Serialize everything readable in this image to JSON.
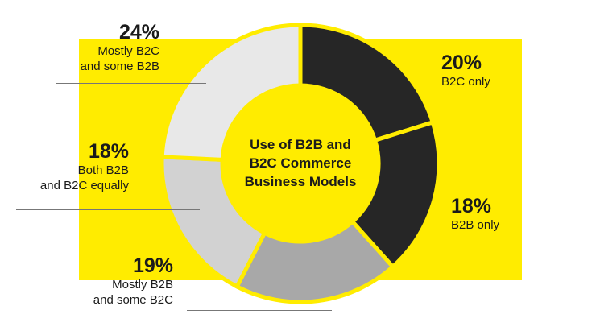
{
  "chart_data": {
    "type": "pie",
    "title": "Use of B2B and B2C Commerce Business Models",
    "categories": [
      "B2C only",
      "B2B only",
      "Mostly B2B and some B2C",
      "Both B2B and B2C equally",
      "Mostly B2C and some B2B"
    ],
    "values": [
      20,
      18,
      19,
      18,
      24
    ],
    "value_labels": [
      "20%",
      "18%",
      "19%",
      "18%",
      "24%"
    ],
    "slice_colors": [
      "#262626",
      "#262626",
      "#a8a8a8",
      "#d2d2d2",
      "#e8e8e8"
    ]
  },
  "labels": {
    "b2c_only": {
      "pct": "20%",
      "line1": "B2C only"
    },
    "b2b_only": {
      "pct": "18%",
      "line1": "B2B only"
    },
    "mostly_b2b": {
      "pct": "19%",
      "line1": "Mostly B2B",
      "line2": "and some B2C"
    },
    "both_equally": {
      "pct": "18%",
      "line1": "Both B2B",
      "line2": "and B2C equally"
    },
    "mostly_b2c": {
      "pct": "24%",
      "line1": "Mostly B2C",
      "line2": "and some B2B"
    }
  },
  "center": {
    "line1": "Use of B2B and",
    "line2": "B2C Commerce",
    "line3": "Business Models"
  },
  "colors": {
    "band": "#ffec00",
    "dark": "#262626",
    "rule_teal": "#1e8a8a",
    "rule_gray": "#777777"
  }
}
